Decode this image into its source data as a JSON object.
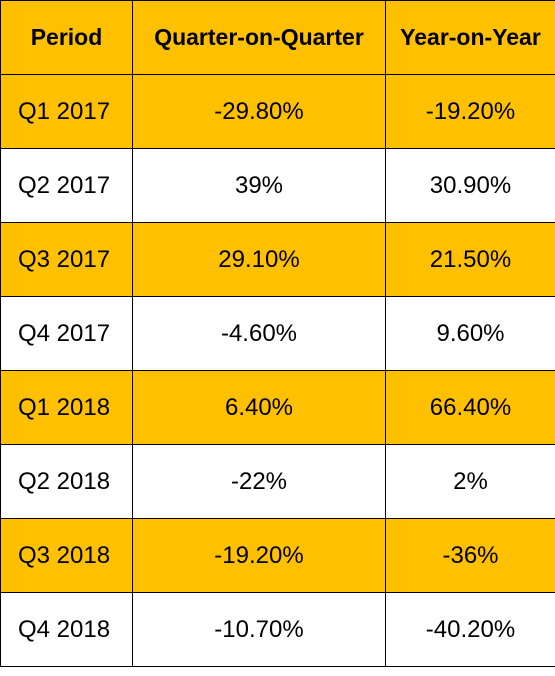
{
  "colors": {
    "header_fill": "#ffc000",
    "band_fill": "#ffc000",
    "plain_fill": "#ffffff",
    "border": "#000000"
  },
  "chart_data": {
    "type": "table",
    "columns": [
      "Period",
      "Quarter-on-Quarter",
      "Year-on-Year"
    ],
    "rows": [
      [
        "Q1 2017",
        "-29.80%",
        "-19.20%"
      ],
      [
        "Q2 2017",
        "39%",
        "30.90%"
      ],
      [
        "Q3 2017",
        "29.10%",
        "21.50%"
      ],
      [
        "Q4 2017",
        "-4.60%",
        "9.60%"
      ],
      [
        "Q1 2018",
        "6.40%",
        "66.40%"
      ],
      [
        "Q2 2018",
        "-22%",
        "2%"
      ],
      [
        "Q3 2018",
        "-19.20%",
        "-36%"
      ],
      [
        "Q4 2018",
        "-10.70%",
        "-40.20%"
      ]
    ]
  }
}
